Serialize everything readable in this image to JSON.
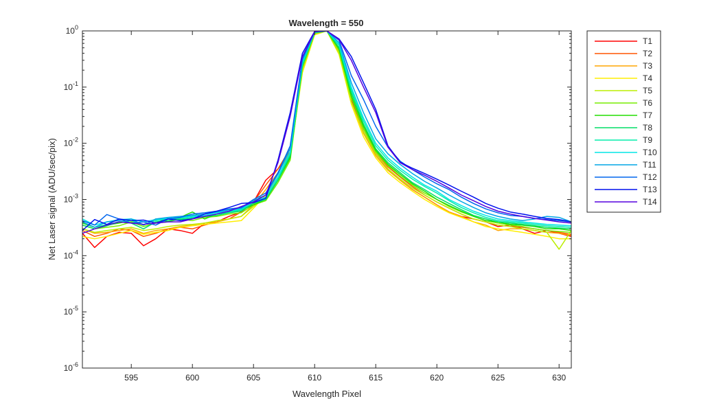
{
  "chart_data": {
    "type": "line",
    "title": "Wavelength = 550",
    "xlabel": "Wavelength Pixel",
    "ylabel": "Net Laser signal  (ADU/sec/pix)",
    "xlim": [
      591,
      631
    ],
    "ylim": [
      1e-06,
      1
    ],
    "y_scale": "log",
    "x_ticks": [
      595,
      600,
      605,
      610,
      615,
      620,
      625,
      630
    ],
    "y_ticks": [
      {
        "value": 1e-06,
        "base": "10",
        "exp": "-6"
      },
      {
        "value": 1e-05,
        "base": "10",
        "exp": "-5"
      },
      {
        "value": 0.0001,
        "base": "10",
        "exp": "-4"
      },
      {
        "value": 0.001,
        "base": "10",
        "exp": "-3"
      },
      {
        "value": 0.01,
        "base": "10",
        "exp": "-2"
      },
      {
        "value": 0.1,
        "base": "10",
        "exp": "-1"
      },
      {
        "value": 1,
        "base": "10",
        "exp": "0"
      }
    ],
    "grid": false,
    "legend_position": "outside-right",
    "x": [
      591,
      592,
      593,
      594,
      595,
      596,
      597,
      598,
      599,
      600,
      601,
      602,
      603,
      604,
      605,
      606,
      607,
      608,
      609,
      610,
      611,
      612,
      613,
      614,
      615,
      616,
      617,
      618,
      619,
      620,
      621,
      622,
      623,
      624,
      625,
      626,
      627,
      628,
      629,
      630,
      631
    ],
    "series": [
      {
        "name": "T1",
        "color": "#ff0000",
        "values": [
          0.00025,
          0.00014,
          0.00022,
          0.00026,
          0.00025,
          0.00015,
          0.0002,
          0.0003,
          0.00028,
          0.00025,
          0.00038,
          0.0004,
          0.0005,
          0.0006,
          0.0009,
          0.0022,
          0.0035,
          0.007,
          0.2,
          0.9,
          1.0,
          0.45,
          0.06,
          0.016,
          0.0065,
          0.0035,
          0.0022,
          0.0015,
          0.0011,
          0.0008,
          0.0006,
          0.0005,
          0.00045,
          0.0004,
          0.00033,
          0.00035,
          0.0003,
          0.00025,
          0.00028,
          0.00025,
          0.00022
        ]
      },
      {
        "name": "T2",
        "color": "#ff5500",
        "values": [
          0.00028,
          0.00022,
          0.00025,
          0.0003,
          0.00028,
          0.00022,
          0.00025,
          0.0003,
          0.00032,
          0.0003,
          0.00035,
          0.0004,
          0.00045,
          0.0006,
          0.0009,
          0.0018,
          0.0035,
          0.008,
          0.25,
          0.95,
          1.0,
          0.5,
          0.07,
          0.018,
          0.007,
          0.0038,
          0.0025,
          0.0017,
          0.0012,
          0.0009,
          0.0007,
          0.00055,
          0.00045,
          0.0004,
          0.00035,
          0.00033,
          0.00032,
          0.0003,
          0.00028,
          0.00026,
          0.00024
        ]
      },
      {
        "name": "T3",
        "color": "#ffa500",
        "values": [
          0.0003,
          0.00025,
          0.00026,
          0.00028,
          0.0003,
          0.00025,
          0.00028,
          0.0003,
          0.00033,
          0.00035,
          0.00038,
          0.0004,
          0.00045,
          0.0005,
          0.0008,
          0.0015,
          0.003,
          0.007,
          0.22,
          0.92,
          1.0,
          0.42,
          0.055,
          0.015,
          0.006,
          0.0033,
          0.0022,
          0.0015,
          0.0011,
          0.0008,
          0.0006,
          0.0005,
          0.0004,
          0.00035,
          0.00028,
          0.0003,
          0.0003,
          0.00028,
          0.00026,
          0.00025,
          0.00023
        ]
      },
      {
        "name": "T4",
        "color": "#ffee00",
        "values": [
          0.00022,
          0.0002,
          0.00022,
          0.00025,
          0.00028,
          0.00024,
          0.00026,
          0.00028,
          0.00032,
          0.00034,
          0.00036,
          0.00038,
          0.0004,
          0.00042,
          0.0007,
          0.0012,
          0.0025,
          0.006,
          0.18,
          0.85,
          1.0,
          0.38,
          0.05,
          0.013,
          0.0055,
          0.003,
          0.002,
          0.0014,
          0.001,
          0.00075,
          0.00058,
          0.00048,
          0.0004,
          0.00033,
          0.0003,
          0.00028,
          0.00026,
          0.00024,
          0.00022,
          0.0002,
          0.0002
        ]
      },
      {
        "name": "T5",
        "color": "#bbee00",
        "values": [
          0.0003,
          0.00026,
          0.00028,
          0.0003,
          0.00032,
          0.00028,
          0.0003,
          0.00033,
          0.00035,
          0.00036,
          0.00038,
          0.00042,
          0.00045,
          0.0005,
          0.00075,
          0.0011,
          0.0022,
          0.0055,
          0.2,
          0.9,
          1.0,
          0.4,
          0.055,
          0.016,
          0.0065,
          0.0035,
          0.0023,
          0.0016,
          0.0012,
          0.0009,
          0.0007,
          0.00055,
          0.00045,
          0.0004,
          0.00035,
          0.00033,
          0.0003,
          0.00028,
          0.00026,
          0.00013,
          0.00028
        ]
      },
      {
        "name": "T6",
        "color": "#77ee00",
        "values": [
          0.00035,
          0.0003,
          0.00032,
          0.00034,
          0.0004,
          0.00033,
          0.00038,
          0.0004,
          0.00045,
          0.00042,
          0.00048,
          0.0005,
          0.00055,
          0.00058,
          0.0008,
          0.00095,
          0.002,
          0.005,
          0.22,
          0.9,
          1.0,
          0.45,
          0.065,
          0.018,
          0.007,
          0.004,
          0.0026,
          0.0018,
          0.0013,
          0.001,
          0.00075,
          0.0006,
          0.0005,
          0.00042,
          0.00038,
          0.00035,
          0.00033,
          0.0003,
          0.00028,
          0.00027,
          0.00026
        ]
      },
      {
        "name": "T7",
        "color": "#22dd00",
        "values": [
          0.00038,
          0.00032,
          0.00035,
          0.00038,
          0.00042,
          0.00035,
          0.00045,
          0.0004,
          0.00048,
          0.0006,
          0.00045,
          0.00055,
          0.0006,
          0.00065,
          0.0008,
          0.001,
          0.0022,
          0.0055,
          0.25,
          0.92,
          1.0,
          0.48,
          0.07,
          0.02,
          0.0075,
          0.0042,
          0.0028,
          0.0019,
          0.0014,
          0.001,
          0.00078,
          0.00062,
          0.0005,
          0.00042,
          0.0004,
          0.00036,
          0.00035,
          0.00033,
          0.0003,
          0.0003,
          0.00028
        ]
      },
      {
        "name": "T8",
        "color": "#00dd66",
        "values": [
          0.00035,
          0.0003,
          0.00034,
          0.0004,
          0.00038,
          0.0003,
          0.0004,
          0.00042,
          0.00044,
          0.00046,
          0.0005,
          0.00052,
          0.00058,
          0.00062,
          0.00085,
          0.001,
          0.0022,
          0.006,
          0.24,
          0.93,
          1.0,
          0.5,
          0.08,
          0.022,
          0.008,
          0.0045,
          0.003,
          0.002,
          0.0015,
          0.0011,
          0.00085,
          0.00066,
          0.00052,
          0.00045,
          0.0004,
          0.00038,
          0.00036,
          0.00034,
          0.00032,
          0.00031,
          0.0003
        ]
      },
      {
        "name": "T9",
        "color": "#00eeaa",
        "values": [
          0.0004,
          0.00032,
          0.00036,
          0.0004,
          0.00042,
          0.00036,
          0.00042,
          0.00045,
          0.00046,
          0.00048,
          0.0005,
          0.00055,
          0.0006,
          0.00065,
          0.0009,
          0.0011,
          0.0024,
          0.0065,
          0.26,
          0.94,
          1.0,
          0.55,
          0.09,
          0.025,
          0.009,
          0.005,
          0.0033,
          0.0023,
          0.0017,
          0.0013,
          0.00095,
          0.00072,
          0.00058,
          0.00048,
          0.00042,
          0.0004,
          0.00038,
          0.00036,
          0.00034,
          0.00033,
          0.00032
        ]
      },
      {
        "name": "T10",
        "color": "#00e5e5",
        "values": [
          0.00045,
          0.00035,
          0.0004,
          0.00044,
          0.00045,
          0.0004,
          0.00044,
          0.00046,
          0.00048,
          0.0005,
          0.00052,
          0.00058,
          0.00062,
          0.00068,
          0.0009,
          0.0011,
          0.0025,
          0.007,
          0.28,
          0.95,
          1.0,
          0.58,
          0.1,
          0.028,
          0.01,
          0.0055,
          0.0036,
          0.0025,
          0.0018,
          0.0014,
          0.001,
          0.00078,
          0.00062,
          0.00052,
          0.00045,
          0.00042,
          0.0004,
          0.00038,
          0.00036,
          0.00035,
          0.00034
        ]
      },
      {
        "name": "T11",
        "color": "#00a5e5",
        "values": [
          0.0004,
          0.00032,
          0.0004,
          0.00042,
          0.00045,
          0.00035,
          0.00045,
          0.00048,
          0.0005,
          0.00052,
          0.00055,
          0.0006,
          0.00065,
          0.0007,
          0.00095,
          0.0012,
          0.0028,
          0.008,
          0.3,
          0.96,
          1.0,
          0.62,
          0.12,
          0.035,
          0.012,
          0.0065,
          0.0042,
          0.0029,
          0.0021,
          0.0016,
          0.0012,
          0.00092,
          0.00072,
          0.00058,
          0.0005,
          0.00045,
          0.00042,
          0.00045,
          0.0005,
          0.00048,
          0.0004
        ]
      },
      {
        "name": "T12",
        "color": "#0066ee",
        "values": [
          0.00042,
          0.00035,
          0.00054,
          0.00045,
          0.00038,
          0.0004,
          0.00035,
          0.00045,
          0.00048,
          0.00055,
          0.00058,
          0.00062,
          0.00068,
          0.00072,
          0.001,
          0.0013,
          0.003,
          0.009,
          0.32,
          0.97,
          1.0,
          0.68,
          0.16,
          0.06,
          0.02,
          0.0085,
          0.0048,
          0.0034,
          0.0025,
          0.0019,
          0.0015,
          0.0011,
          0.00085,
          0.00068,
          0.00058,
          0.00052,
          0.0005,
          0.00046,
          0.00044,
          0.00042,
          0.0004
        ]
      },
      {
        "name": "T13",
        "color": "#0011ee",
        "values": [
          0.00028,
          0.00044,
          0.00036,
          0.00045,
          0.00042,
          0.00043,
          0.00038,
          0.00045,
          0.00042,
          0.00045,
          0.00055,
          0.00062,
          0.00072,
          0.00085,
          0.00088,
          0.00105,
          0.005,
          0.035,
          0.4,
          0.98,
          1.0,
          0.72,
          0.35,
          0.12,
          0.04,
          0.009,
          0.0046,
          0.0036,
          0.0029,
          0.0023,
          0.0018,
          0.0014,
          0.0011,
          0.00085,
          0.0007,
          0.0006,
          0.00055,
          0.0005,
          0.00046,
          0.00044,
          0.0004
        ]
      },
      {
        "name": "T14",
        "color": "#5500dd",
        "values": [
          0.00025,
          0.0003,
          0.00035,
          0.0004,
          0.00038,
          0.00036,
          0.00038,
          0.0004,
          0.0004,
          0.00045,
          0.0005,
          0.00055,
          0.00062,
          0.00075,
          0.0009,
          0.0012,
          0.0045,
          0.03,
          0.35,
          0.97,
          1.0,
          0.7,
          0.3,
          0.1,
          0.035,
          0.0085,
          0.0045,
          0.0034,
          0.0027,
          0.0021,
          0.0016,
          0.0012,
          0.00095,
          0.00075,
          0.00062,
          0.00055,
          0.0005,
          0.00046,
          0.00043,
          0.0004,
          0.00038
        ]
      }
    ]
  }
}
